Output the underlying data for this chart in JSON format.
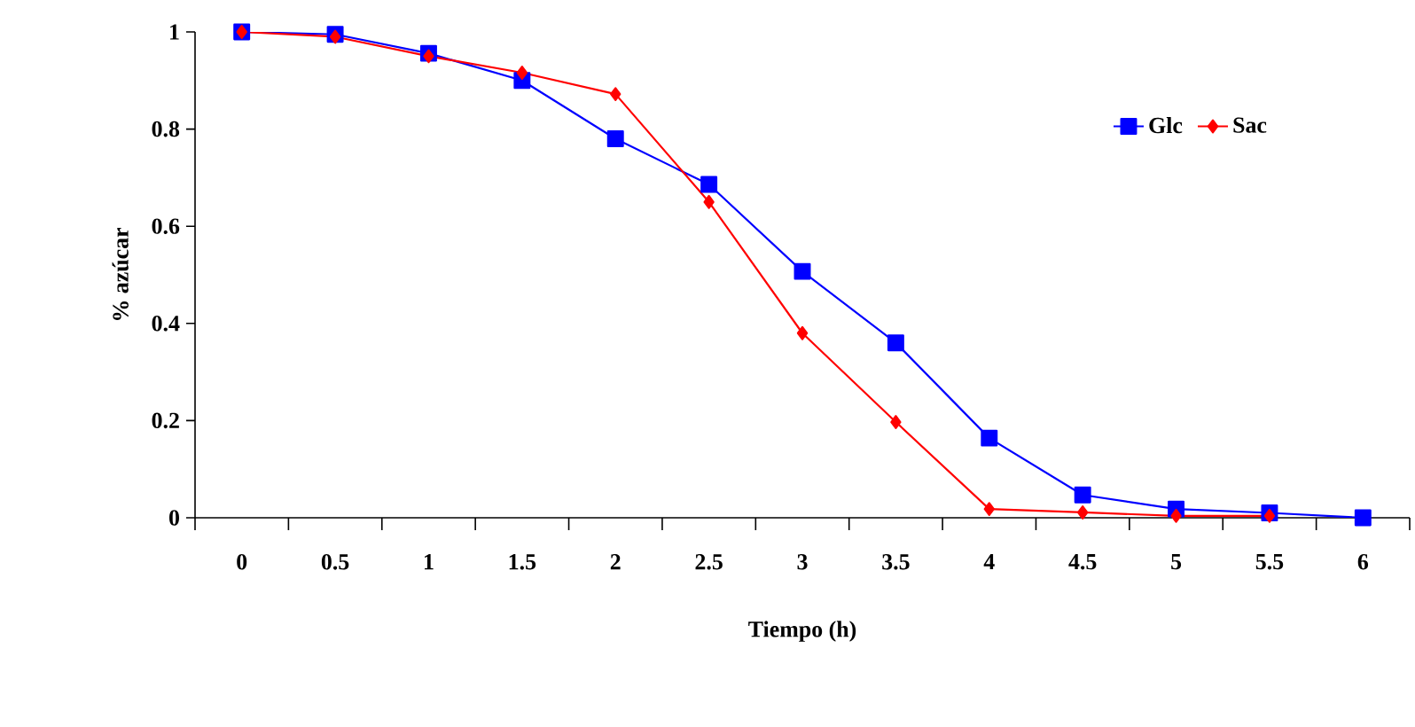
{
  "chart_data": {
    "type": "line",
    "xlabel": "Tiempo (h)",
    "ylabel": "% azúcar",
    "categories": [
      "0",
      "0.5",
      "1",
      "1.5",
      "2",
      "2.5",
      "3",
      "3.5",
      "4",
      "4.5",
      "5",
      "5.5",
      "6"
    ],
    "series": [
      {
        "name": "Glc",
        "color": "#0000ff",
        "marker": "square",
        "values": [
          1.0,
          0.995,
          0.956,
          0.9,
          0.78,
          0.686,
          0.507,
          0.36,
          0.164,
          0.047,
          0.018,
          0.01,
          0.0
        ]
      },
      {
        "name": "Sac",
        "color": "#ff0000",
        "marker": "diamond",
        "values": [
          1.0,
          0.99,
          0.95,
          0.916,
          0.872,
          0.65,
          0.38,
          0.197,
          0.018,
          0.011,
          0.004,
          0.004,
          null
        ]
      }
    ],
    "ylim": [
      0,
      1
    ],
    "yticks": [
      0,
      0.2,
      0.4,
      0.6,
      0.8,
      1
    ],
    "grid": false,
    "legend": "top right",
    "line_style": "solid"
  }
}
